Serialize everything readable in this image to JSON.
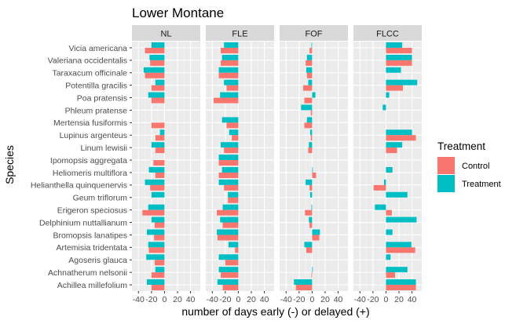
{
  "chart_data": {
    "type": "bar",
    "orientation": "horizontal",
    "title": "Lower Montane",
    "xlabel": "number of days early (-) or delayed (+)",
    "ylabel": "Species",
    "xlim": [
      -50,
      55
    ],
    "x_ticks": [
      -40,
      -20,
      0,
      20,
      40
    ],
    "x_tick_labels": [
      "-40",
      "-20",
      "0",
      "20",
      "40"
    ],
    "grid": true,
    "legend": {
      "title": "Treatment",
      "position": "right",
      "entries": [
        {
          "name": "Control",
          "color": "#F8766D"
        },
        {
          "name": "Treatment",
          "color": "#00BFC4"
        }
      ]
    },
    "categories": [
      "Vicia americana",
      "Valeriana occidentalis",
      "Taraxacum officinale",
      "Potentilla gracilis",
      "Poa pratensis",
      "Phleum pratense",
      "Mertensia fusiformis",
      "Lupinus argenteus",
      "Linum lewisii",
      "Ipomopsis aggregata",
      "Heliomeris multiflora",
      "Helianthella quinquenervis",
      "Geum triflorum",
      "Erigeron speciosus",
      "Delphinium nuttallianum",
      "Bromopsis lanatipes",
      "Artemisia tridentata",
      "Agoseris glauca",
      "Achnatherum nelsonii",
      "Achillea millefolium"
    ],
    "panels": [
      {
        "name": "NL",
        "series": [
          {
            "name": "Treatment",
            "values": [
              -20,
              -23,
              -32,
              -14,
              -25,
              null,
              null,
              -7,
              -20,
              null,
              -24,
              -30,
              -20,
              -25,
              -20,
              -27,
              -25,
              -28,
              -14,
              -27
            ]
          },
          {
            "name": "Control",
            "values": [
              -30,
              -22,
              -30,
              -20,
              -20,
              null,
              -20,
              -14,
              -14,
              -17,
              -14,
              -22,
              null,
              -34,
              -15,
              -16,
              -24,
              -15,
              -20,
              -20
            ]
          }
        ]
      },
      {
        "name": "FLE",
        "series": [
          {
            "name": "Treatment",
            "values": [
              -22,
              -25,
              -30,
              -22,
              -28,
              null,
              -25,
              -14,
              -27,
              -30,
              -25,
              -30,
              -16,
              -24,
              -28,
              -33,
              -15,
              -30,
              -30,
              -32
            ]
          },
          {
            "name": "Control",
            "values": [
              -27,
              -27,
              -30,
              -18,
              -38,
              null,
              -18,
              -10,
              -22,
              -30,
              -30,
              -22,
              -16,
              -33,
              -24,
              -32,
              -5,
              -20,
              -27,
              -24
            ]
          }
        ]
      },
      {
        "name": "FOF",
        "series": [
          {
            "name": "Treatment",
            "values": [
              -1,
              -8,
              -9,
              -6,
              5,
              -17,
              -8,
              -3,
              -5,
              null,
              1,
              -10,
              -3,
              -1,
              -5,
              12,
              -12,
              null,
              1,
              -28
            ]
          },
          {
            "name": "Control",
            "values": [
              -4,
              -10,
              -8,
              -14,
              -12,
              -2,
              -12,
              -2,
              -6,
              null,
              6,
              -4,
              null,
              -11,
              -4,
              11,
              -9,
              null,
              -1,
              -25
            ]
          }
        ]
      },
      {
        "name": "FLCC",
        "series": [
          {
            "name": "Treatment",
            "values": [
              25,
              40,
              23,
              48,
              5,
              -5,
              0,
              40,
              25,
              null,
              10,
              -3,
              33,
              -17,
              47,
              10,
              39,
              7,
              33,
              46
            ]
          },
          {
            "name": "Control",
            "values": [
              40,
              40,
              0,
              26,
              0,
              0,
              0,
              46,
              17,
              null,
              0,
              -19,
              0,
              9,
              0,
              0,
              45,
              0,
              14,
              46
            ]
          }
        ]
      }
    ]
  }
}
